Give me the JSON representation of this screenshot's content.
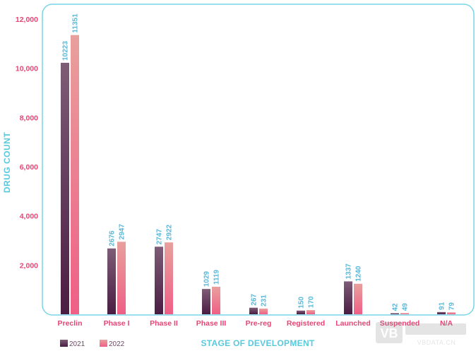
{
  "chart_data": {
    "type": "bar",
    "categories": [
      "Preclin",
      "Phase I",
      "Phase II",
      "Phase III",
      "Pre-reg",
      "Registered",
      "Launched",
      "Suspended",
      "N/A"
    ],
    "series": [
      {
        "name": "2021",
        "values": [
          10223,
          2676,
          2747,
          1029,
          267,
          150,
          1337,
          42,
          91
        ],
        "labels": [
          "10223",
          "2676",
          "2747",
          "1029",
          "267",
          "150",
          "1337",
          "42",
          "91"
        ]
      },
      {
        "name": "2022",
        "values": [
          11351,
          2947,
          2922,
          1119,
          231,
          170,
          1240,
          49,
          79
        ],
        "labels": [
          "11351",
          "2947",
          "2922",
          "1119",
          "231",
          "170",
          "1240",
          "49",
          "79"
        ]
      }
    ],
    "xlabel": "STAGE OF DEVELOPMENT",
    "ylabel": "DRUG COUNT",
    "ylim": [
      0,
      12000
    ],
    "yticks": [
      2000,
      4000,
      6000,
      8000,
      10000,
      12000
    ],
    "ytick_labels": [
      "2,000",
      "4,000",
      "6,000",
      "8,000",
      "10,000",
      "12,000"
    ],
    "grid": false,
    "legend_position": "bottom-left"
  },
  "watermark": {
    "text": "VBDATA.CN"
  },
  "colors": {
    "frame": "#79d5e6",
    "axis_title": "#58c9dd",
    "value_label": "#5bb8d8",
    "tick_label": "#e84374",
    "category_label": "#e84374",
    "series_2021_top": "#7e5c76",
    "series_2021_bottom": "#4a1d43",
    "series_2022_top": "#e8a09d",
    "series_2022_bottom": "#ef5f86"
  }
}
